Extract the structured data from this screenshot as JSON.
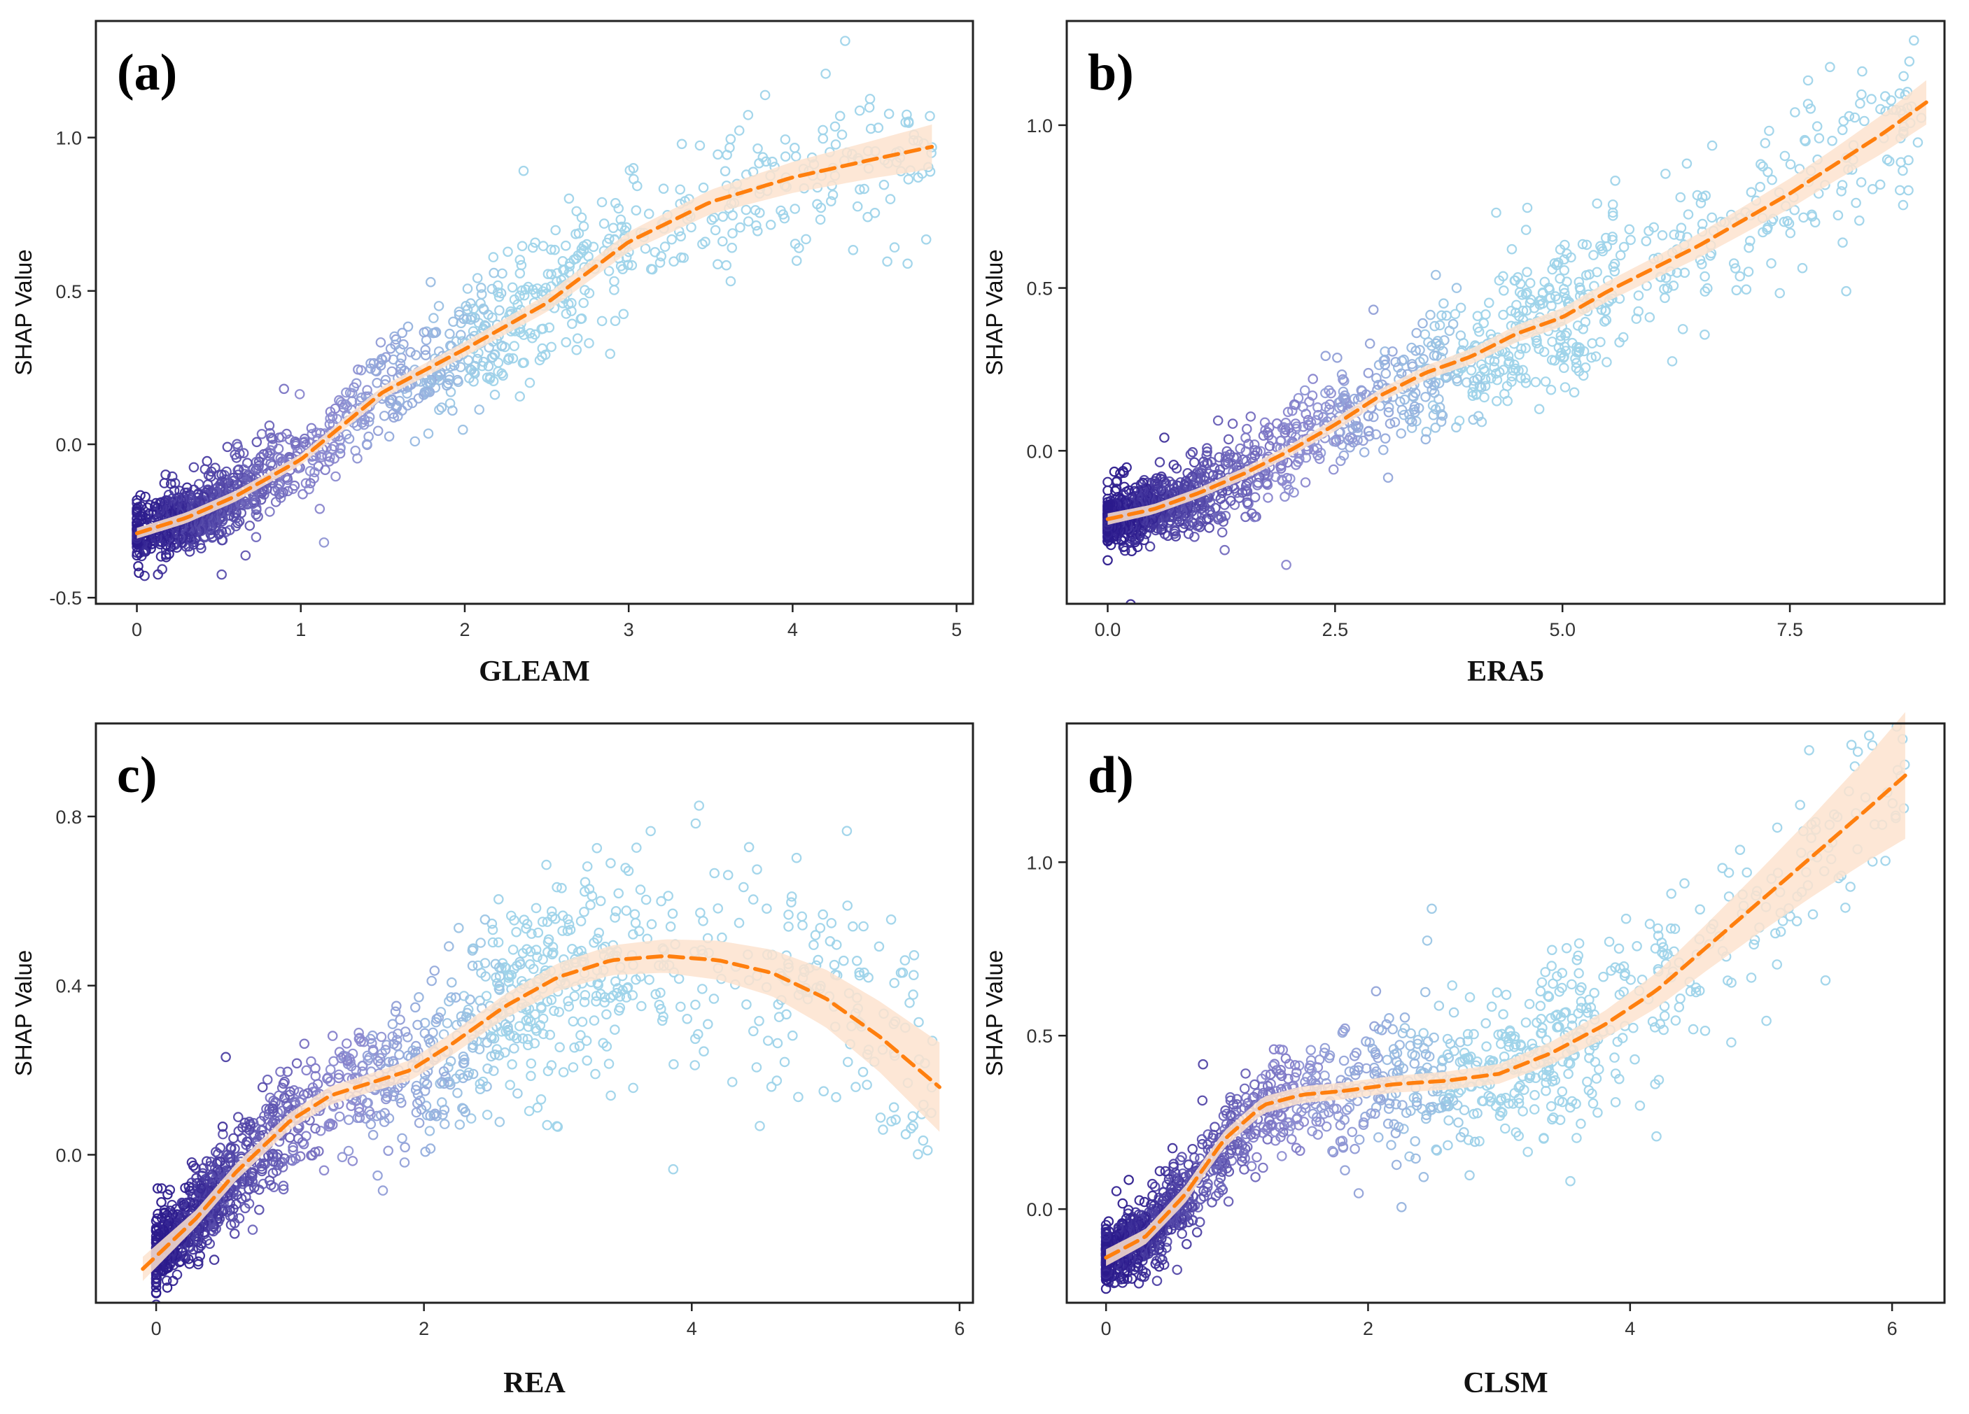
{
  "chart_data": [
    {
      "type": "scatter",
      "panel_label": "(a)",
      "xlabel": "GLEAM",
      "ylabel": "SHAP Value",
      "xlim": [
        -0.25,
        5.1
      ],
      "ylim": [
        -0.52,
        1.38
      ],
      "xticks": [
        0,
        1,
        2,
        3,
        4,
        5
      ],
      "xtick_labels": [
        "0",
        "1",
        "2",
        "3",
        "4",
        "5"
      ],
      "yticks": [
        -0.5,
        0.0,
        0.5,
        1.0
      ],
      "ytick_labels": [
        "-0.5",
        "0.0",
        "0.5",
        "1.0"
      ],
      "grid": false,
      "legend": "none",
      "smooth_fit": {
        "x": [
          0,
          0.3,
          0.6,
          1.0,
          1.5,
          2.0,
          2.5,
          3.0,
          3.5,
          4.0,
          4.5,
          4.85
        ],
        "y": [
          -0.29,
          -0.24,
          -0.17,
          -0.05,
          0.17,
          0.31,
          0.46,
          0.66,
          0.79,
          0.87,
          0.93,
          0.97
        ],
        "ci": [
          0.005,
          0.005,
          0.005,
          0.005,
          0.006,
          0.008,
          0.01,
          0.012,
          0.015,
          0.02,
          0.025,
          0.03
        ]
      },
      "points": {
        "count": 1400,
        "x_range": [
          0,
          4.85
        ],
        "noise_sd": [
          0.045,
          0.12
        ],
        "density_peak": 0.35
      }
    },
    {
      "type": "scatter",
      "panel_label": "b)",
      "xlabel": "ERA5",
      "ylabel": "SHAP Value",
      "xlim": [
        -0.45,
        9.2
      ],
      "ylim": [
        -0.47,
        1.32
      ],
      "xticks": [
        0,
        2.5,
        5,
        7.5
      ],
      "xtick_labels": [
        "0.0",
        "2.5",
        "5.0",
        "7.5"
      ],
      "yticks": [
        0.0,
        0.5,
        1.0
      ],
      "ytick_labels": [
        "0.0",
        "0.5",
        "1.0"
      ],
      "grid": false,
      "legend": "none",
      "smooth_fit": {
        "x": [
          0,
          0.5,
          1.0,
          1.5,
          2.0,
          2.5,
          3.0,
          3.5,
          4.0,
          4.5,
          5.0,
          5.5,
          6.0,
          6.5,
          7.0,
          7.5,
          8.0,
          8.5,
          9.0
        ],
        "y": [
          -0.21,
          -0.18,
          -0.13,
          -0.07,
          0.0,
          0.08,
          0.17,
          0.24,
          0.29,
          0.36,
          0.41,
          0.49,
          0.56,
          0.63,
          0.71,
          0.79,
          0.88,
          0.97,
          1.07
        ],
        "ci": [
          0.005,
          0.004,
          0.004,
          0.005,
          0.005,
          0.006,
          0.006,
          0.007,
          0.008,
          0.009,
          0.01,
          0.011,
          0.012,
          0.014,
          0.016,
          0.018,
          0.02,
          0.024,
          0.028
        ]
      },
      "points": {
        "count": 1500,
        "x_range": [
          0,
          9.0
        ],
        "noise_sd": [
          0.04,
          0.13
        ],
        "density_peak": 0.4
      }
    },
    {
      "type": "scatter",
      "panel_label": "c)",
      "xlabel": "REA",
      "ylabel": "SHAP Value",
      "xlim": [
        -0.45,
        6.1
      ],
      "ylim": [
        -0.35,
        1.02
      ],
      "xticks": [
        0,
        2,
        4,
        6
      ],
      "xtick_labels": [
        "0",
        "2",
        "4",
        "6"
      ],
      "yticks": [
        0.0,
        0.4,
        0.8
      ],
      "ytick_labels": [
        "0.0",
        "0.4",
        "0.8"
      ],
      "grid": false,
      "legend": "none",
      "smooth_fit": {
        "x": [
          -0.1,
          0.3,
          0.6,
          1.0,
          1.3,
          1.6,
          1.9,
          2.2,
          2.6,
          3.0,
          3.4,
          3.8,
          4.2,
          4.6,
          5.0,
          5.4,
          5.85
        ],
        "y": [
          -0.27,
          -0.15,
          -0.04,
          0.08,
          0.14,
          0.17,
          0.2,
          0.26,
          0.35,
          0.42,
          0.46,
          0.47,
          0.46,
          0.43,
          0.37,
          0.28,
          0.16
        ],
        "ci": [
          0.01,
          0.006,
          0.006,
          0.006,
          0.007,
          0.007,
          0.008,
          0.009,
          0.01,
          0.012,
          0.013,
          0.015,
          0.018,
          0.022,
          0.028,
          0.035,
          0.045
        ]
      },
      "points": {
        "count": 1500,
        "x_range": [
          0,
          5.8
        ],
        "noise_sd": [
          0.04,
          0.14
        ],
        "density_peak": 0.3
      }
    },
    {
      "type": "scatter",
      "panel_label": "d)",
      "xlabel": "CLSM",
      "ylabel": "SHAP Value",
      "xlim": [
        -0.3,
        6.4
      ],
      "ylim": [
        -0.27,
        1.4
      ],
      "xticks": [
        0,
        2,
        4,
        6
      ],
      "xtick_labels": [
        "0",
        "2",
        "4",
        "6"
      ],
      "yticks": [
        0.0,
        0.5,
        1.0
      ],
      "ytick_labels": [
        "0.0",
        "0.5",
        "1.0"
      ],
      "grid": false,
      "legend": "none",
      "smooth_fit": {
        "x": [
          0,
          0.3,
          0.6,
          0.9,
          1.2,
          1.5,
          1.8,
          2.2,
          2.6,
          3.0,
          3.4,
          3.8,
          4.2,
          4.6,
          5.0,
          5.4,
          5.8,
          6.1
        ],
        "y": [
          -0.14,
          -0.08,
          0.04,
          0.2,
          0.3,
          0.33,
          0.34,
          0.36,
          0.37,
          0.39,
          0.45,
          0.53,
          0.63,
          0.76,
          0.89,
          1.02,
          1.15,
          1.25
        ],
        "ci": [
          0.008,
          0.007,
          0.008,
          0.008,
          0.008,
          0.008,
          0.008,
          0.008,
          0.009,
          0.01,
          0.012,
          0.015,
          0.02,
          0.028,
          0.038,
          0.05,
          0.065,
          0.08
        ]
      },
      "points": {
        "count": 1500,
        "x_range": [
          0,
          6.1
        ],
        "noise_sd": [
          0.04,
          0.14
        ],
        "density_peak": 0.25
      }
    }
  ],
  "colors": {
    "fit_line": "#ff7f0e",
    "ci_band": "#fde3cf",
    "dense_points": "#2b1a8c",
    "mid_points": "#8b87cf",
    "sparse_points": "#9fd4ea"
  }
}
